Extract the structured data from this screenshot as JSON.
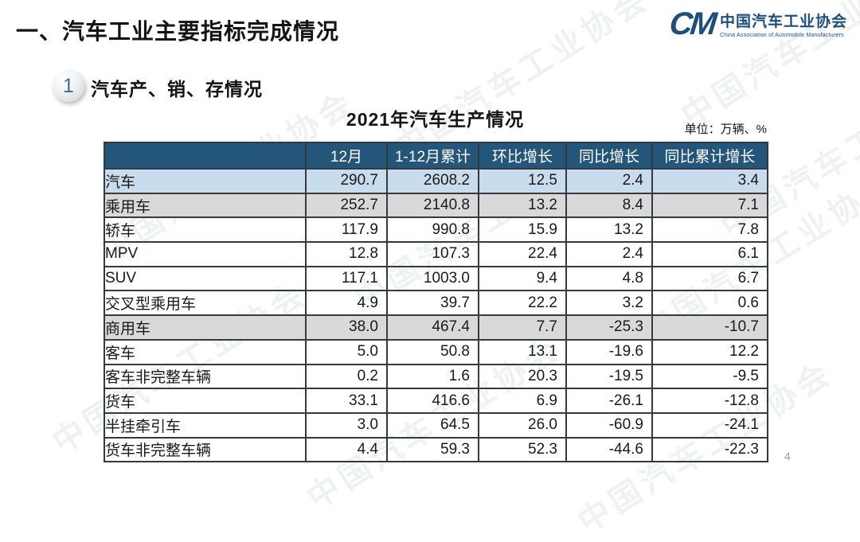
{
  "page": {
    "title": "一、汽车工业主要指标完成情况",
    "page_number": "4"
  },
  "logo": {
    "mark": "CM",
    "name_zh": "中国汽车工业协会",
    "name_en": "China Association of Automobile Manufacturers",
    "color": "#1d4e7e"
  },
  "section": {
    "badge": "1",
    "heading": "汽车产、销、存情况"
  },
  "watermark": {
    "text": "中国汽车工业协会"
  },
  "colors": {
    "header_bg": "#24567A",
    "header_text": "#ffffff",
    "row_blue": "#C8DCEE",
    "row_gray": "#D9D9D9",
    "border": "#333a40"
  },
  "chart_data": {
    "type": "table",
    "title": "2021年汽车生产情况",
    "unit_note": "单位：万辆、%",
    "columns": [
      "",
      "12月",
      "1-12月累计",
      "环比增长",
      "同比增长",
      "同比累计增长"
    ],
    "rows": [
      {
        "label": "汽车",
        "indent": 0,
        "highlight": "blue",
        "values": [
          "290.7",
          "2608.2",
          "12.5",
          "2.4",
          "3.4"
        ]
      },
      {
        "label": "乘用车",
        "indent": 1,
        "highlight": "gray",
        "values": [
          "252.7",
          "2140.8",
          "13.2",
          "8.4",
          "7.1"
        ]
      },
      {
        "label": "轿车",
        "indent": 2,
        "highlight": "none",
        "values": [
          "117.9",
          "990.8",
          "15.9",
          "13.2",
          "7.8"
        ]
      },
      {
        "label": "MPV",
        "indent": 2,
        "highlight": "none",
        "values": [
          "12.8",
          "107.3",
          "22.4",
          "2.4",
          "6.1"
        ]
      },
      {
        "label": "SUV",
        "indent": 2,
        "highlight": "none",
        "values": [
          "117.1",
          "1003.0",
          "9.4",
          "4.8",
          "6.7"
        ]
      },
      {
        "label": "交叉型乘用车",
        "indent": 2,
        "highlight": "none",
        "values": [
          "4.9",
          "39.7",
          "22.2",
          "3.2",
          "0.6"
        ]
      },
      {
        "label": "商用车",
        "indent": 1,
        "highlight": "gray",
        "values": [
          "38.0",
          "467.4",
          "7.7",
          "-25.3",
          "-10.7"
        ]
      },
      {
        "label": "客车",
        "indent": 2,
        "highlight": "none",
        "values": [
          "5.0",
          "50.8",
          "13.1",
          "-19.6",
          "12.2"
        ]
      },
      {
        "label": "客车非完整车辆",
        "indent": 3,
        "highlight": "none",
        "values": [
          "0.2",
          "1.6",
          "20.3",
          "-19.5",
          "-9.5"
        ]
      },
      {
        "label": "货车",
        "indent": 2,
        "highlight": "none",
        "values": [
          "33.1",
          "416.6",
          "6.9",
          "-26.1",
          "-12.8"
        ]
      },
      {
        "label": "半挂牵引车",
        "indent": 3,
        "highlight": "none",
        "values": [
          "3.0",
          "64.5",
          "26.0",
          "-60.9",
          "-24.1"
        ]
      },
      {
        "label": "货车非完整车辆",
        "indent": 3,
        "highlight": "none",
        "values": [
          "4.4",
          "59.3",
          "52.3",
          "-44.6",
          "-22.3"
        ]
      }
    ]
  }
}
